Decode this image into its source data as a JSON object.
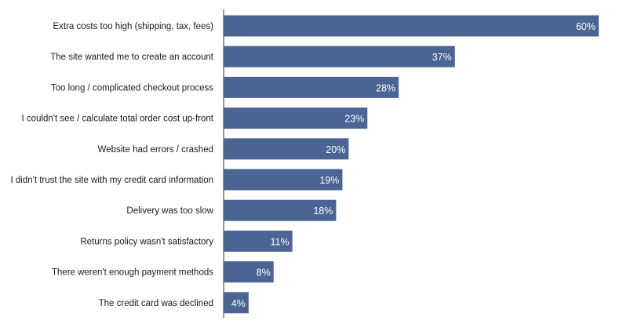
{
  "chart_data": {
    "type": "bar",
    "orientation": "horizontal",
    "title": "",
    "xlabel": "",
    "ylabel": "",
    "xlim": [
      0,
      60
    ],
    "grid": false,
    "value_suffix": "%",
    "bar_color": "#4a6593",
    "categories": [
      "Extra costs too high (shipping, tax, fees)",
      "The site wanted me to create an account",
      "Too long / complicated checkout process",
      "I couldn't see / calculate total order cost up-front",
      "Website had errors / crashed",
      "I didn't trust the site with my credit card information",
      "Delivery was too slow",
      "Returns policy wasn't satisfactory",
      "There weren't enough payment methods",
      "The credit card was declined"
    ],
    "values": [
      60,
      37,
      28,
      23,
      20,
      19,
      18,
      11,
      8,
      4
    ],
    "value_labels": [
      "60%",
      "37%",
      "28%",
      "23%",
      "20%",
      "19%",
      "18%",
      "11%",
      "8%",
      "4%"
    ]
  }
}
